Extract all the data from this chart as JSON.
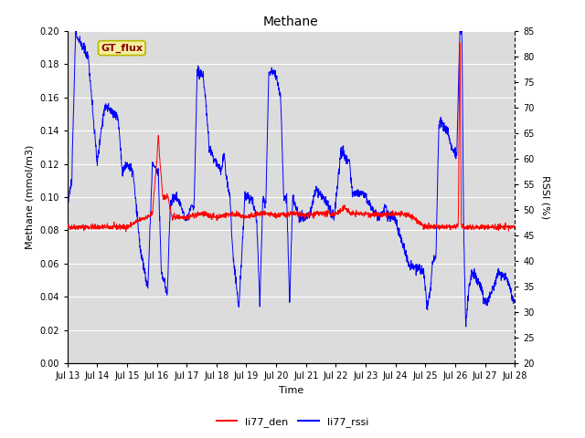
{
  "title": "Methane",
  "xlabel": "Time",
  "ylabel_left": "Methane (mmol/m3)",
  "ylabel_right": "RSSI (%)",
  "ylim_left": [
    0.0,
    0.2
  ],
  "ylim_right": [
    20,
    85
  ],
  "background_color": "#dcdcdc",
  "fig_background": "#ffffff",
  "annotation_text": "GT_flux",
  "annotation_facecolor": "#f5f0a0",
  "annotation_edgecolor": "#b8b800",
  "legend_labels": [
    "li77_den",
    "li77_rssi"
  ],
  "legend_colors": [
    "red",
    "blue"
  ],
  "line_den_color": "red",
  "line_rssi_color": "blue",
  "x_tick_labels": [
    "Jul 13",
    "Jul 14",
    "Jul 15",
    "Jul 16",
    "Jul 17",
    "Jul 18",
    "Jul 19",
    "Jul 20",
    "Jul 21",
    "Jul 22",
    "Jul 23",
    "Jul 24",
    "Jul 25",
    "Jul 26",
    "Jul 27",
    "Jul 28"
  ],
  "rssi_keypoints": [
    [
      0.0,
      0.094
    ],
    [
      0.15,
      0.11
    ],
    [
      0.28,
      0.2
    ],
    [
      0.35,
      0.195
    ],
    [
      0.7,
      0.185
    ],
    [
      1.0,
      0.12
    ],
    [
      1.25,
      0.155
    ],
    [
      1.45,
      0.152
    ],
    [
      1.7,
      0.148
    ],
    [
      1.85,
      0.115
    ],
    [
      2.0,
      0.12
    ],
    [
      2.2,
      0.115
    ],
    [
      2.45,
      0.068
    ],
    [
      2.7,
      0.045
    ],
    [
      2.85,
      0.12
    ],
    [
      3.05,
      0.115
    ],
    [
      3.15,
      0.055
    ],
    [
      3.35,
      0.042
    ],
    [
      3.45,
      0.095
    ],
    [
      3.55,
      0.1
    ],
    [
      3.65,
      0.1
    ],
    [
      3.85,
      0.093
    ],
    [
      3.95,
      0.088
    ],
    [
      4.05,
      0.088
    ],
    [
      4.15,
      0.095
    ],
    [
      4.25,
      0.095
    ],
    [
      4.35,
      0.175
    ],
    [
      4.45,
      0.175
    ],
    [
      4.55,
      0.172
    ],
    [
      4.65,
      0.155
    ],
    [
      4.75,
      0.13
    ],
    [
      4.85,
      0.125
    ],
    [
      4.95,
      0.122
    ],
    [
      5.05,
      0.12
    ],
    [
      5.15,
      0.115
    ],
    [
      5.25,
      0.125
    ],
    [
      5.35,
      0.11
    ],
    [
      5.45,
      0.1
    ],
    [
      5.55,
      0.065
    ],
    [
      5.75,
      0.034
    ],
    [
      5.95,
      0.1
    ],
    [
      6.05,
      0.101
    ],
    [
      6.15,
      0.1
    ],
    [
      6.25,
      0.095
    ],
    [
      6.35,
      0.085
    ],
    [
      6.45,
      0.035
    ],
    [
      6.55,
      0.1
    ],
    [
      6.65,
      0.095
    ],
    [
      6.75,
      0.175
    ],
    [
      6.95,
      0.175
    ],
    [
      7.05,
      0.168
    ],
    [
      7.15,
      0.16
    ],
    [
      7.25,
      0.1
    ],
    [
      7.35,
      0.1
    ],
    [
      7.45,
      0.035
    ],
    [
      7.55,
      0.1
    ],
    [
      7.65,
      0.095
    ],
    [
      7.75,
      0.09
    ],
    [
      7.85,
      0.088
    ],
    [
      7.95,
      0.088
    ],
    [
      8.05,
      0.088
    ],
    [
      8.15,
      0.09
    ],
    [
      8.25,
      0.1
    ],
    [
      8.35,
      0.105
    ],
    [
      8.45,
      0.102
    ],
    [
      8.55,
      0.1
    ],
    [
      8.65,
      0.097
    ],
    [
      8.75,
      0.095
    ],
    [
      8.85,
      0.09
    ],
    [
      8.95,
      0.088
    ],
    [
      9.15,
      0.125
    ],
    [
      9.25,
      0.128
    ],
    [
      9.35,
      0.122
    ],
    [
      9.45,
      0.121
    ],
    [
      9.55,
      0.102
    ],
    [
      9.65,
      0.103
    ],
    [
      9.75,
      0.103
    ],
    [
      9.95,
      0.102
    ],
    [
      10.15,
      0.095
    ],
    [
      10.35,
      0.09
    ],
    [
      10.45,
      0.088
    ],
    [
      10.55,
      0.09
    ],
    [
      10.65,
      0.095
    ],
    [
      10.75,
      0.088
    ],
    [
      10.85,
      0.088
    ],
    [
      10.95,
      0.088
    ],
    [
      11.45,
      0.059
    ],
    [
      11.65,
      0.058
    ],
    [
      11.95,
      0.055
    ],
    [
      12.05,
      0.034
    ],
    [
      12.15,
      0.042
    ],
    [
      12.25,
      0.062
    ],
    [
      12.35,
      0.064
    ],
    [
      12.45,
      0.145
    ],
    [
      12.55,
      0.145
    ],
    [
      12.65,
      0.142
    ],
    [
      12.75,
      0.14
    ],
    [
      12.85,
      0.13
    ],
    [
      12.95,
      0.128
    ],
    [
      13.05,
      0.125
    ],
    [
      13.15,
      0.2
    ],
    [
      13.22,
      0.2
    ],
    [
      13.28,
      0.08
    ],
    [
      13.35,
      0.022
    ],
    [
      13.45,
      0.045
    ],
    [
      13.55,
      0.055
    ],
    [
      13.65,
      0.053
    ],
    [
      13.75,
      0.05
    ],
    [
      13.85,
      0.048
    ],
    [
      13.95,
      0.038
    ],
    [
      14.05,
      0.037
    ],
    [
      14.15,
      0.04
    ],
    [
      14.25,
      0.045
    ],
    [
      14.45,
      0.055
    ],
    [
      14.55,
      0.053
    ],
    [
      14.75,
      0.05
    ],
    [
      15.0,
      0.035
    ]
  ],
  "den_keypoints": [
    [
      0.0,
      0.082
    ],
    [
      2.0,
      0.082
    ],
    [
      2.5,
      0.087
    ],
    [
      2.7,
      0.088
    ],
    [
      2.85,
      0.09
    ],
    [
      3.0,
      0.122
    ],
    [
      3.05,
      0.138
    ],
    [
      3.1,
      0.122
    ],
    [
      3.2,
      0.1
    ],
    [
      3.3,
      0.1
    ],
    [
      3.35,
      0.102
    ],
    [
      3.4,
      0.098
    ],
    [
      3.5,
      0.088
    ],
    [
      4.0,
      0.088
    ],
    [
      4.5,
      0.09
    ],
    [
      5.0,
      0.088
    ],
    [
      5.5,
      0.09
    ],
    [
      6.0,
      0.088
    ],
    [
      6.5,
      0.09
    ],
    [
      7.0,
      0.089
    ],
    [
      7.5,
      0.09
    ],
    [
      8.0,
      0.089
    ],
    [
      8.5,
      0.09
    ],
    [
      9.0,
      0.09
    ],
    [
      9.2,
      0.092
    ],
    [
      9.3,
      0.094
    ],
    [
      9.4,
      0.092
    ],
    [
      9.5,
      0.09
    ],
    [
      10.0,
      0.09
    ],
    [
      10.5,
      0.089
    ],
    [
      11.0,
      0.09
    ],
    [
      11.5,
      0.089
    ],
    [
      12.0,
      0.082
    ],
    [
      12.5,
      0.082
    ],
    [
      13.0,
      0.082
    ],
    [
      13.1,
      0.083
    ],
    [
      13.15,
      0.2
    ],
    [
      13.2,
      0.083
    ],
    [
      13.25,
      0.082
    ],
    [
      14.0,
      0.082
    ],
    [
      15.0,
      0.082
    ]
  ]
}
